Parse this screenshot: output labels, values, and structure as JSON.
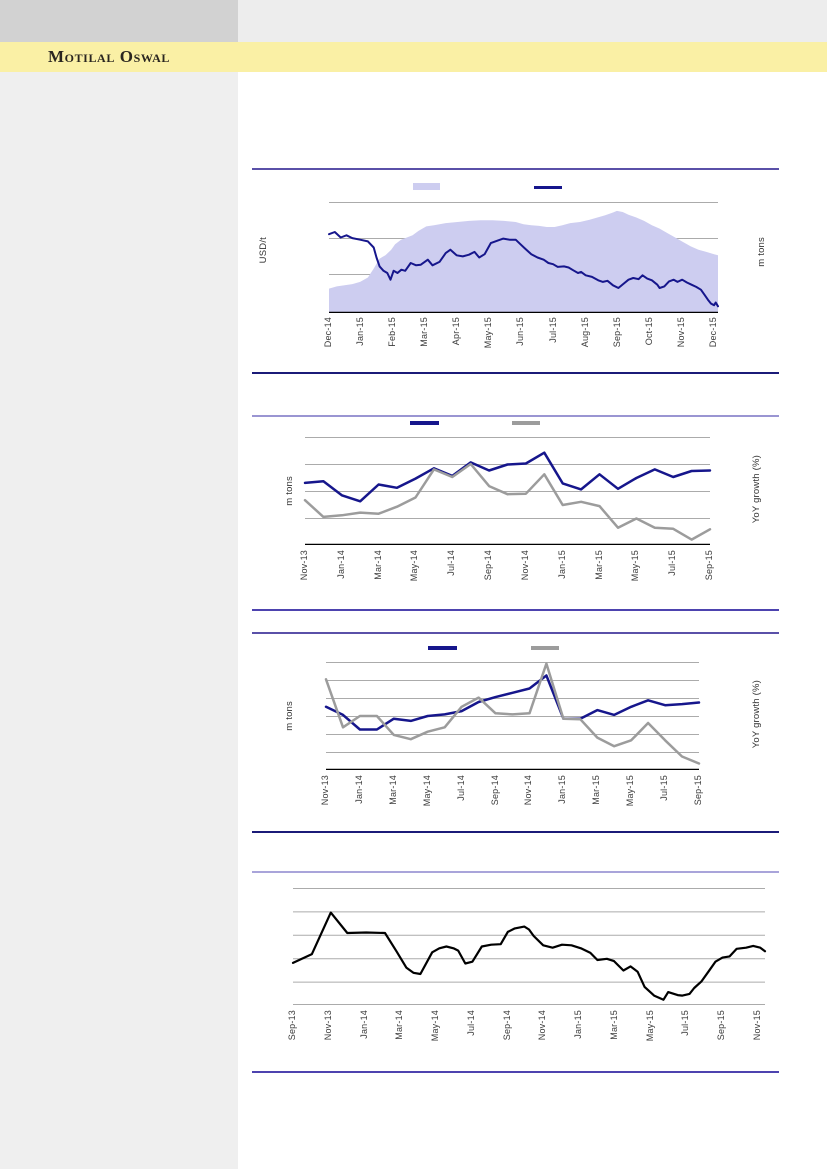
{
  "page": {
    "brand": "Motilal Oswal",
    "colors": {
      "brand_band": "#FAF0A5",
      "logo_box": "#D2D2D2",
      "top_strip": "#EDEDED",
      "sidebar": "#EFEFEF",
      "rule_navy": "#1B1B78",
      "rule_violet": "#4D43AF",
      "rule_medium": "#5A50A8",
      "rule_periwinkle": "#9A95D2",
      "rule_light": "#A9A4DA",
      "grid": "#ABABAB",
      "axis_black": "#000000",
      "series_navy": "#16168C",
      "series_gray": "#9C9C9C",
      "series_black": "#000000",
      "area_fill": "#CDCDF0",
      "tick_text": "#3C3C3C"
    }
  },
  "chart_data": [
    {
      "type": "area",
      "title": "",
      "left_axis_label": "USD/t",
      "right_axis_label": "m tons",
      "y_axis_numbers_visible": false,
      "values_unit": "percent of plot height (no numeric ticks shown)",
      "x_tick_labels": [
        "Dec-14",
        "Jan-15",
        "Feb-15",
        "Mar-15",
        "Apr-15",
        "May-15",
        "Jun-15",
        "Jul-15",
        "Aug-15",
        "Sep-15",
        "Oct-15",
        "Nov-15",
        "Dec-15"
      ],
      "legend": [
        {
          "swatch": "area",
          "label": "",
          "color_key": "area_fill"
        },
        {
          "swatch": "line",
          "label": "",
          "color_key": "series_navy"
        }
      ],
      "series": [
        {
          "name": "shaded-area-series",
          "type": "area",
          "color_key": "area_fill",
          "points": [
            [
              0,
              22
            ],
            [
              2,
              24
            ],
            [
              4,
              25
            ],
            [
              6,
              26
            ],
            [
              8,
              28
            ],
            [
              10,
              32
            ],
            [
              11.5,
              40
            ],
            [
              13,
              49
            ],
            [
              14.5,
              52
            ],
            [
              16,
              57
            ],
            [
              17,
              62
            ],
            [
              18.5,
              66
            ],
            [
              20,
              68
            ],
            [
              21.5,
              70
            ],
            [
              23,
              74
            ],
            [
              25,
              78
            ],
            [
              27,
              79
            ],
            [
              30,
              81
            ],
            [
              33,
              82
            ],
            [
              36,
              83
            ],
            [
              39,
              83.5
            ],
            [
              42,
              83.5
            ],
            [
              45,
              83
            ],
            [
              48,
              82
            ],
            [
              50,
              80
            ],
            [
              52,
              79
            ],
            [
              54,
              78.5
            ],
            [
              56,
              77.5
            ],
            [
              58,
              77.5
            ],
            [
              60,
              79
            ],
            [
              62,
              81
            ],
            [
              64.5,
              82
            ],
            [
              67,
              84
            ],
            [
              69,
              86
            ],
            [
              71,
              88
            ],
            [
              73,
              90.5
            ],
            [
              74,
              92
            ],
            [
              75.5,
              91
            ],
            [
              77,
              88.5
            ],
            [
              79,
              86
            ],
            [
              81,
              83
            ],
            [
              83,
              79
            ],
            [
              85,
              76
            ],
            [
              87,
              72
            ],
            [
              89,
              68
            ],
            [
              91,
              64
            ],
            [
              93,
              60
            ],
            [
              95,
              57
            ],
            [
              97,
              55
            ],
            [
              99,
              53
            ],
            [
              100,
              52
            ]
          ]
        },
        {
          "name": "navy-line-series",
          "type": "line",
          "color_key": "series_navy",
          "width": 2,
          "points": [
            [
              0,
              71
            ],
            [
              1.5,
              73
            ],
            [
              3,
              68
            ],
            [
              4.5,
              70
            ],
            [
              6,
              67.5
            ],
            [
              8,
              66
            ],
            [
              10,
              64.5
            ],
            [
              11.5,
              59
            ],
            [
              12.2,
              50
            ],
            [
              13,
              42
            ],
            [
              14,
              38
            ],
            [
              15,
              36
            ],
            [
              15.8,
              30
            ],
            [
              16.6,
              38
            ],
            [
              17.6,
              36
            ],
            [
              18.6,
              39
            ],
            [
              19.6,
              38
            ],
            [
              21,
              45
            ],
            [
              22.4,
              43
            ],
            [
              23.6,
              43.5
            ],
            [
              25.4,
              48
            ],
            [
              26.6,
              43
            ],
            [
              28.4,
              46
            ],
            [
              30,
              54
            ],
            [
              31.2,
              57
            ],
            [
              32.8,
              52
            ],
            [
              34.4,
              51
            ],
            [
              36,
              52.5
            ],
            [
              37.4,
              55
            ],
            [
              38.6,
              50
            ],
            [
              40,
              53
            ],
            [
              41.6,
              63
            ],
            [
              43.2,
              65
            ],
            [
              44.8,
              67
            ],
            [
              46.4,
              66
            ],
            [
              48,
              66
            ],
            [
              49.2,
              62
            ],
            [
              50.4,
              58
            ],
            [
              52,
              53
            ],
            [
              53.6,
              50
            ],
            [
              55.2,
              48
            ],
            [
              56.4,
              45
            ],
            [
              57.6,
              44
            ],
            [
              58.8,
              41.5
            ],
            [
              60.4,
              42
            ],
            [
              61.6,
              41
            ],
            [
              62.8,
              38.5
            ],
            [
              64,
              36
            ],
            [
              64.8,
              37
            ],
            [
              66,
              34
            ],
            [
              67.6,
              32.5
            ],
            [
              69.2,
              29.5
            ],
            [
              70.4,
              28
            ],
            [
              71.6,
              29
            ],
            [
              73,
              25
            ],
            [
              74.4,
              22.5
            ],
            [
              75.6,
              26
            ],
            [
              77,
              30
            ],
            [
              78.2,
              31.5
            ],
            [
              79.6,
              30.5
            ],
            [
              80.6,
              34
            ],
            [
              81.8,
              31
            ],
            [
              83,
              29.5
            ],
            [
              84.4,
              25.5
            ],
            [
              85,
              22.5
            ],
            [
              86.2,
              24
            ],
            [
              87.4,
              28.5
            ],
            [
              88.6,
              30
            ],
            [
              89.6,
              28
            ],
            [
              90.8,
              30
            ],
            [
              92,
              27.5
            ],
            [
              93.2,
              25.5
            ],
            [
              94.4,
              23.5
            ],
            [
              95.6,
              21
            ],
            [
              96.6,
              16
            ],
            [
              97.4,
              12
            ],
            [
              98.2,
              8.5
            ],
            [
              99,
              7
            ],
            [
              99.4,
              9.5
            ],
            [
              100,
              6
            ]
          ]
        }
      ]
    },
    {
      "type": "line",
      "title": "",
      "left_axis_label": "m tons",
      "right_axis_label": "YoY growth (%)",
      "y_axis_numbers_visible": false,
      "values_unit": "percent of plot height (no numeric ticks shown)",
      "x_tick_labels": [
        "Nov-13",
        "Jan-14",
        "Mar-14",
        "May-14",
        "Jul-14",
        "Sep-14",
        "Nov-14",
        "Jan-15",
        "Mar-15",
        "May-15",
        "Jul-15",
        "Sep-15"
      ],
      "categories": [
        "Nov-13",
        "Dec-13",
        "Jan-14",
        "Feb-14",
        "Mar-14",
        "Apr-14",
        "May-14",
        "Jun-14",
        "Jul-14",
        "Aug-14",
        "Sep-14",
        "Oct-14",
        "Nov-14",
        "Dec-14",
        "Jan-15",
        "Feb-15",
        "Mar-15",
        "Apr-15",
        "May-15",
        "Jun-15",
        "Jul-15",
        "Aug-15",
        "Sep-15"
      ],
      "legend": [
        {
          "swatch": "line",
          "label": "",
          "color_key": "series_navy"
        },
        {
          "swatch": "line",
          "label": "",
          "color_key": "series_gray"
        }
      ],
      "series": [
        {
          "name": "navy-line-series",
          "type": "line",
          "color_key": "series_navy",
          "width": 2.5,
          "values": [
            57.5,
            59,
            46,
            40.5,
            56,
            53,
            61.5,
            71,
            64,
            76.5,
            69,
            74.5,
            75.5,
            85.5,
            57,
            51.5,
            65.5,
            52,
            62,
            70,
            63,
            68.5,
            69
          ]
        },
        {
          "name": "gray-line-series",
          "type": "line",
          "color_key": "series_gray",
          "width": 2.5,
          "values": [
            41.5,
            26,
            27.5,
            30,
            29,
            35.5,
            44,
            70,
            63,
            75,
            54.5,
            47,
            47.5,
            65.5,
            37,
            40,
            36,
            16,
            24.5,
            16,
            15,
            5,
            14.5
          ]
        }
      ]
    },
    {
      "type": "line",
      "title": "",
      "left_axis_label": "m tons",
      "right_axis_label": "YoY growth (%)",
      "y_axis_numbers_visible": false,
      "values_unit": "percent of plot height (no numeric ticks shown)",
      "x_tick_labels": [
        "Nov-13",
        "Jan-14",
        "Mar-14",
        "May-14",
        "Jul-14",
        "Sep-14",
        "Nov-14",
        "Jan-15",
        "Mar-15",
        "May-15",
        "Jul-15",
        "Sep-15"
      ],
      "categories": [
        "Nov-13",
        "Dec-13",
        "Jan-14",
        "Feb-14",
        "Mar-14",
        "Apr-14",
        "May-14",
        "Jun-14",
        "Jul-14",
        "Aug-14",
        "Sep-14",
        "Oct-14",
        "Nov-14",
        "Dec-14",
        "Jan-15",
        "Feb-15",
        "Mar-15",
        "Apr-15",
        "May-15",
        "Jun-15",
        "Jul-15",
        "Aug-15",
        "Sep-15"
      ],
      "legend": [
        {
          "swatch": "line",
          "label": "",
          "color_key": "series_navy"
        },
        {
          "swatch": "line",
          "label": "",
          "color_key": "series_gray"
        }
      ],
      "series": [
        {
          "name": "navy-line-series",
          "type": "line",
          "color_key": "series_navy",
          "width": 2.5,
          "values": [
            58.5,
            51,
            37.5,
            37.5,
            47.5,
            45.5,
            50,
            51.5,
            54.5,
            63,
            67.5,
            71.5,
            75.5,
            87.5,
            47.5,
            47.5,
            55.5,
            51,
            58.5,
            64.5,
            60,
            61,
            62.5
          ]
        },
        {
          "name": "gray-line-series",
          "type": "line",
          "color_key": "series_gray",
          "width": 2.5,
          "values": [
            84,
            39.5,
            50,
            50,
            32.5,
            28.5,
            35.5,
            39.5,
            58.5,
            67,
            52.5,
            51.5,
            52.5,
            98.5,
            47.5,
            47,
            30,
            22,
            27.5,
            43.5,
            27.5,
            12.5,
            6
          ]
        }
      ]
    },
    {
      "type": "line",
      "title": "",
      "left_axis_label": "",
      "right_axis_label": "",
      "y_axis_numbers_visible": false,
      "values_unit": "percent of plot height (no numeric ticks shown)",
      "x_tick_labels": [
        "Sep-13",
        "Nov-13",
        "Jan-14",
        "Mar-14",
        "May-14",
        "Jul-14",
        "Sep-14",
        "Nov-14",
        "Jan-15",
        "Mar-15",
        "May-15",
        "Jul-15",
        "Sep-15",
        "Nov-15"
      ],
      "legend": [],
      "series": [
        {
          "name": "black-line-series",
          "type": "line",
          "color_key": "series_black",
          "width": 2.2,
          "points": [
            [
              0,
              36
            ],
            [
              4,
              43.5
            ],
            [
              8,
              79
            ],
            [
              11.5,
              61.5
            ],
            [
              15.5,
              62
            ],
            [
              19.5,
              61.5
            ],
            [
              22,
              45.5
            ],
            [
              24,
              32
            ],
            [
              25.5,
              27.5
            ],
            [
              27,
              26.5
            ],
            [
              29.5,
              45
            ],
            [
              31,
              48.5
            ],
            [
              32.5,
              50
            ],
            [
              34,
              48.5
            ],
            [
              35,
              46.5
            ],
            [
              36.5,
              35.5
            ],
            [
              38,
              37
            ],
            [
              40,
              50
            ],
            [
              42,
              51.5
            ],
            [
              44,
              52
            ],
            [
              45.5,
              62.5
            ],
            [
              47,
              65.5
            ],
            [
              49,
              67
            ],
            [
              50,
              64.5
            ],
            [
              51,
              59
            ],
            [
              53,
              51
            ],
            [
              55,
              49
            ],
            [
              57,
              51.5
            ],
            [
              59,
              51
            ],
            [
              61,
              48.5
            ],
            [
              63,
              44.5
            ],
            [
              64.5,
              38.5
            ],
            [
              66.5,
              39.5
            ],
            [
              68,
              37.5
            ],
            [
              70,
              29.5
            ],
            [
              71.5,
              33
            ],
            [
              73,
              28.5
            ],
            [
              74.5,
              15.5
            ],
            [
              76.5,
              8
            ],
            [
              78.5,
              4.5
            ],
            [
              79.5,
              11
            ],
            [
              81.5,
              8.5
            ],
            [
              82.5,
              8
            ],
            [
              84,
              9.5
            ],
            [
              85,
              14.5
            ],
            [
              86.5,
              20
            ],
            [
              88,
              28.5
            ],
            [
              89.5,
              37
            ],
            [
              91,
              40.5
            ],
            [
              92.5,
              41.5
            ],
            [
              94,
              48
            ],
            [
              96,
              49
            ],
            [
              97.5,
              50.5
            ],
            [
              99,
              49
            ],
            [
              100,
              46
            ]
          ]
        }
      ]
    }
  ]
}
